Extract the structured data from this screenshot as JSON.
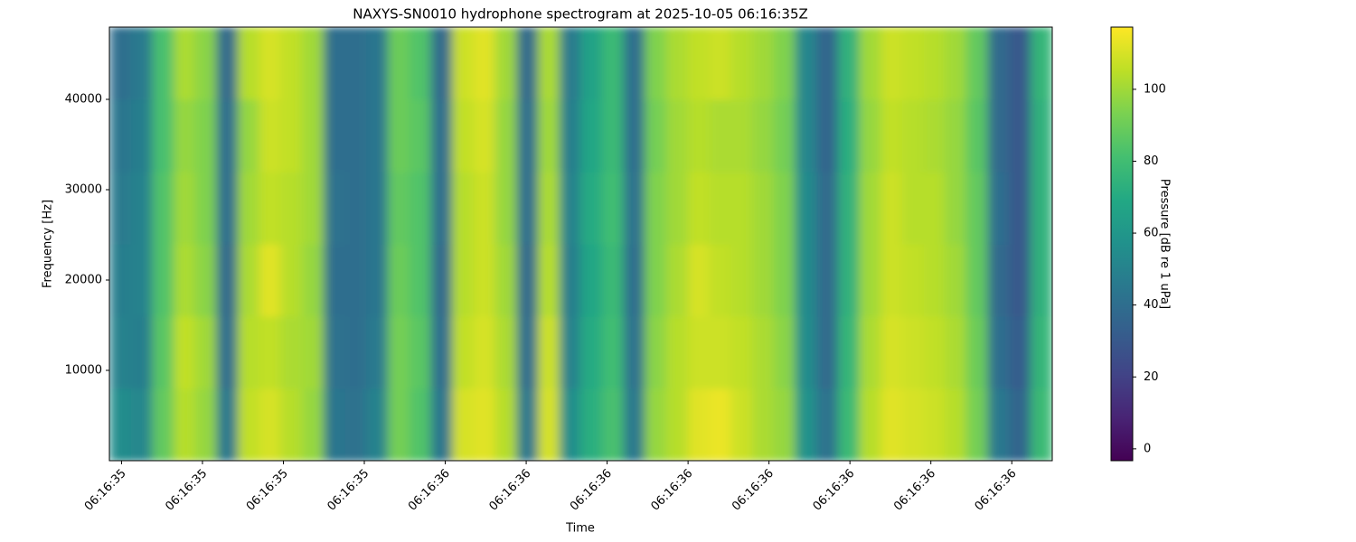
{
  "chart_data": {
    "type": "heatmap",
    "title": "NAXYS-SN0010 hydrophone spectrogram at 2025-10-05 06:16:35Z",
    "xlabel": "Time",
    "ylabel": "Frequency [Hz]",
    "colorbar_label": "Pressure [dB re 1 uPa]",
    "colormap": "viridis",
    "x": [
      35.598,
      35.625,
      35.651,
      35.678,
      35.704,
      35.73,
      35.757,
      35.783,
      35.81,
      35.836,
      35.863,
      35.889,
      35.916,
      35.942,
      35.969,
      35.995,
      36.022,
      36.048,
      36.075,
      36.101,
      36.128,
      36.154,
      36.18,
      36.207,
      36.233,
      36.26,
      36.286,
      36.313,
      36.339,
      36.366,
      36.392,
      36.419,
      36.445,
      36.472,
      36.498,
      36.525,
      36.551,
      36.578,
      36.604,
      36.63,
      36.657,
      36.683,
      36.71,
      36.736
    ],
    "y": [
      4000,
      12000,
      20000,
      28000,
      36000,
      44000
    ],
    "z": [
      [
        55,
        52,
        88,
        104,
        98,
        45,
        106,
        110,
        104,
        98,
        44,
        42,
        50,
        92,
        84,
        44,
        110,
        112,
        104,
        45,
        110,
        55,
        72,
        82,
        45,
        98,
        104,
        112,
        114,
        108,
        102,
        98,
        58,
        42,
        78,
        104,
        112,
        110,
        108,
        104,
        92,
        45,
        36,
        78
      ],
      [
        50,
        48,
        86,
        106,
        100,
        40,
        104,
        106,
        102,
        100,
        42,
        40,
        46,
        92,
        86,
        40,
        106,
        110,
        102,
        40,
        108,
        50,
        70,
        80,
        42,
        96,
        104,
        108,
        108,
        106,
        102,
        96,
        55,
        38,
        76,
        102,
        110,
        108,
        106,
        102,
        90,
        40,
        32,
        76
      ],
      [
        48,
        50,
        84,
        102,
        96,
        38,
        102,
        112,
        104,
        98,
        40,
        40,
        44,
        90,
        84,
        38,
        104,
        108,
        100,
        38,
        104,
        48,
        68,
        78,
        40,
        94,
        102,
        110,
        106,
        104,
        100,
        94,
        54,
        38,
        74,
        100,
        108,
        106,
        104,
        100,
        88,
        38,
        30,
        74
      ],
      [
        46,
        50,
        84,
        100,
        94,
        40,
        100,
        106,
        104,
        100,
        42,
        40,
        44,
        88,
        84,
        40,
        104,
        108,
        98,
        40,
        102,
        50,
        70,
        80,
        42,
        94,
        100,
        106,
        104,
        104,
        100,
        94,
        54,
        38,
        74,
        100,
        108,
        104,
        104,
        98,
        88,
        40,
        30,
        74
      ],
      [
        44,
        48,
        82,
        98,
        94,
        40,
        98,
        108,
        106,
        100,
        40,
        40,
        44,
        90,
        86,
        40,
        106,
        110,
        98,
        40,
        100,
        48,
        68,
        78,
        40,
        92,
        100,
        104,
        102,
        102,
        98,
        92,
        52,
        36,
        72,
        98,
        106,
        104,
        102,
        98,
        86,
        38,
        30,
        74
      ],
      [
        40,
        46,
        82,
        102,
        96,
        38,
        104,
        110,
        106,
        100,
        40,
        40,
        44,
        90,
        84,
        38,
        108,
        112,
        100,
        38,
        102,
        46,
        66,
        78,
        40,
        94,
        102,
        106,
        108,
        104,
        100,
        94,
        52,
        36,
        74,
        100,
        108,
        106,
        104,
        100,
        88,
        38,
        30,
        76
      ]
    ],
    "xlim": [
      35.585,
      36.75
    ],
    "xticks": [
      {
        "value": 35.6,
        "label": "06:16:35"
      },
      {
        "value": 35.7,
        "label": "06:16:35"
      },
      {
        "value": 35.8,
        "label": "06:16:35"
      },
      {
        "value": 35.9,
        "label": "06:16:35"
      },
      {
        "value": 36.0,
        "label": "06:16:36"
      },
      {
        "value": 36.1,
        "label": "06:16:36"
      },
      {
        "value": 36.2,
        "label": "06:16:36"
      },
      {
        "value": 36.3,
        "label": "06:16:36"
      },
      {
        "value": 36.4,
        "label": "06:16:36"
      },
      {
        "value": 36.5,
        "label": "06:16:36"
      },
      {
        "value": 36.6,
        "label": "06:16:36"
      },
      {
        "value": 36.7,
        "label": "06:16:36"
      }
    ],
    "ylim": [
      0,
      48000
    ],
    "yticks": [
      10000,
      20000,
      30000,
      40000
    ],
    "zlim": [
      -3.3,
      117.3
    ],
    "zticks": [
      0,
      20,
      40,
      60,
      80,
      100
    ]
  }
}
